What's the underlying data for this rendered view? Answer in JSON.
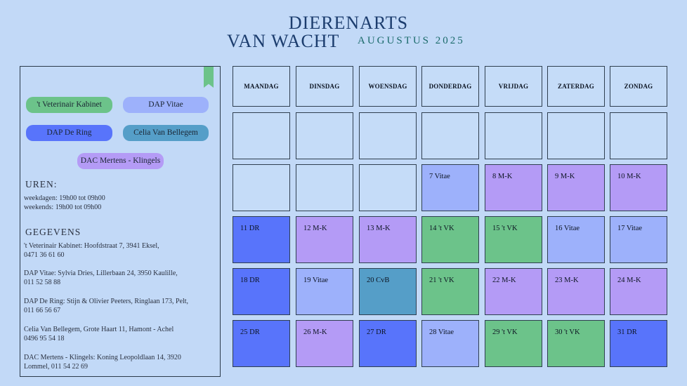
{
  "header": {
    "line1": "DIERENARTS",
    "line2": "VAN WACHT",
    "month": "AUGUSTUS 2025"
  },
  "colors": {
    "background": "#c2d9f7",
    "green": "#6cc38a",
    "light_blue": "#9db1fb",
    "blue": "#5874fb",
    "teal": "#559ec8",
    "purple": "#b49bf6",
    "empty": "#c5dcf8"
  },
  "legend": [
    {
      "label": "'t Veterinair Kabinet",
      "color": "#6cc38a"
    },
    {
      "label": "DAP Vitae",
      "color": "#9db1fb"
    },
    {
      "label": "DAP De Ring",
      "color": "#5874fb"
    },
    {
      "label": "Celia Van Bellegem",
      "color": "#559ec8"
    },
    {
      "label": "DAC Mertens - Klingels",
      "color": "#b49bf6"
    }
  ],
  "hours": {
    "title": "UREN:",
    "weekdays": "weekdagen: 19h00 tot 09h00",
    "weekends": "weekends: 19h00 tot 09h00"
  },
  "details": {
    "title": "GEGEVENS",
    "entries": [
      "'t Veterinair Kabinet: Hoofdstraat 7, 3941 Eksel,\n0471 36 61 60",
      "DAP Vitae: Sylvia Dries, Lillerbaan 24, 3950 Kaulille,\n011 52 58 88",
      "DAP De Ring: Stijn & Olivier Peeters, Ringlaan 173, Pelt,\n011 66 56 67",
      "Celia Van Bellegem, Grote Haart 11, Hamont - Achel\n0496 95 54 18",
      "DAC Mertens - Klingels: Koning Leopoldlaan 14, 3920\nLommel, 011 54 22 69"
    ]
  },
  "calendar": {
    "days": [
      "MAANDAG",
      "DINSDAG",
      "WOENSDAG",
      "DONDERDAG",
      "VRIJDAG",
      "ZATERDAG",
      "ZONDAG"
    ],
    "weeks": [
      [
        null,
        null,
        null,
        null,
        null,
        null,
        null
      ],
      [
        null,
        null,
        null,
        {
          "label": "7 Vitae",
          "color": "#9db1fb"
        },
        {
          "label": "8 M-K",
          "color": "#b49bf6"
        },
        {
          "label": "9 M-K",
          "color": "#b49bf6"
        },
        {
          "label": "10 M-K",
          "color": "#b49bf6"
        }
      ],
      [
        {
          "label": "11 DR",
          "color": "#5874fb"
        },
        {
          "label": "12 M-K",
          "color": "#b49bf6"
        },
        {
          "label": "13 M-K",
          "color": "#b49bf6"
        },
        {
          "label": "14 't VK",
          "color": "#6cc38a"
        },
        {
          "label": "15 't VK",
          "color": "#6cc38a"
        },
        {
          "label": "16 Vitae",
          "color": "#9db1fb"
        },
        {
          "label": "17 Vitae",
          "color": "#9db1fb"
        }
      ],
      [
        {
          "label": "18 DR",
          "color": "#5874fb"
        },
        {
          "label": "19 Vitae",
          "color": "#9db1fb"
        },
        {
          "label": "20 CvB",
          "color": "#559ec8"
        },
        {
          "label": "21 't VK",
          "color": "#6cc38a"
        },
        {
          "label": "22 M-K",
          "color": "#b49bf6"
        },
        {
          "label": "23 M-K",
          "color": "#b49bf6"
        },
        {
          "label": "24 M-K",
          "color": "#b49bf6"
        }
      ],
      [
        {
          "label": "25 DR",
          "color": "#5874fb"
        },
        {
          "label": "26 M-K",
          "color": "#b49bf6"
        },
        {
          "label": "27 DR",
          "color": "#5874fb"
        },
        {
          "label": "28 Vitae",
          "color": "#9db1fb"
        },
        {
          "label": "29 't VK",
          "color": "#6cc38a"
        },
        {
          "label": "30 't VK",
          "color": "#6cc38a"
        },
        {
          "label": "31 DR",
          "color": "#5874fb"
        }
      ]
    ]
  }
}
